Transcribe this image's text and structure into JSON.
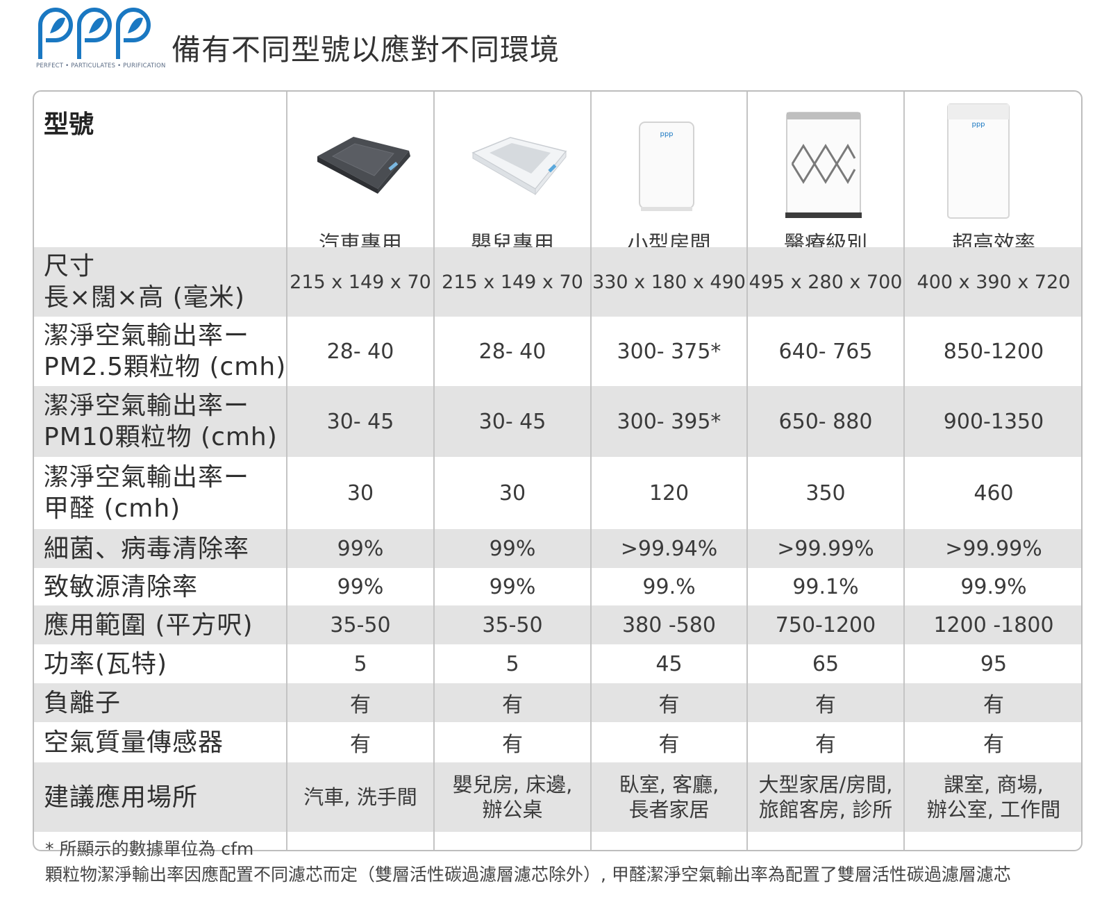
{
  "header": {
    "logo_text": "ppp",
    "logo_tagline": "PERFECT • PARTICULATES • PURIFICATION",
    "title": "備有不同型號以應對不同環境"
  },
  "table": {
    "model_label": "型號",
    "products": [
      {
        "name": "汽車專用",
        "icon": "car-purifier-dark-icon"
      },
      {
        "name": "嬰兒專用",
        "icon": "baby-purifier-white-icon"
      },
      {
        "name": "小型房間",
        "icon": "small-room-tower-icon"
      },
      {
        "name": "醫療級別",
        "icon": "medical-tower-icon"
      },
      {
        "name": "超高效率",
        "icon": "high-efficiency-tower-icon"
      }
    ],
    "rows": [
      {
        "label": [
          "尺寸",
          "長×闊×高 (毫米)"
        ],
        "values": [
          "215 x 149 x 70",
          "215 x 149 x 70",
          "330 x 180 x 490",
          "495 x 280 x 700",
          "400 x 390 x 720"
        ]
      },
      {
        "label": [
          "潔淨空氣輸出率ー",
          "PM2.5顆粒物 (cmh)"
        ],
        "values": [
          "28- 40",
          "28- 40",
          "300- 375*",
          "640- 765",
          "850-1200"
        ]
      },
      {
        "label": [
          "潔淨空氣輸出率ー",
          "PM10顆粒物 (cmh)"
        ],
        "values": [
          "30- 45",
          "30- 45",
          "300- 395*",
          "650- 880",
          "900-1350"
        ]
      },
      {
        "label": [
          "潔淨空氣輸出率ー",
          "甲醛 (cmh)"
        ],
        "values": [
          "30",
          "30",
          "120",
          "350",
          "460"
        ]
      },
      {
        "label": [
          "細菌、病毒清除率"
        ],
        "values": [
          "99%",
          "99%",
          ">99.94%",
          ">99.99%",
          ">99.99%"
        ]
      },
      {
        "label": [
          "致敏源清除率"
        ],
        "values": [
          "99%",
          "99%",
          "99.%",
          "99.1%",
          "99.9%"
        ]
      },
      {
        "label": [
          "應用範圍 (平方呎)"
        ],
        "values": [
          "35-50",
          "35-50",
          "380 -580",
          "750-1200",
          "1200 -1800"
        ]
      },
      {
        "label": [
          "功率(瓦特)"
        ],
        "values": [
          "5",
          "5",
          "45",
          "65",
          "95"
        ]
      },
      {
        "label": [
          "負離子"
        ],
        "values": [
          "有",
          "有",
          "有",
          "有",
          "有"
        ]
      },
      {
        "label": [
          "空氣質量傳感器"
        ],
        "values": [
          "有",
          "有",
          "有",
          "有",
          "有"
        ]
      },
      {
        "label": [
          "建議應用場所"
        ],
        "values": [
          [
            "汽車, 洗手間"
          ],
          [
            "嬰兒房, 床邊,",
            "辦公桌"
          ],
          [
            "臥室, 客廳,",
            "長者家居"
          ],
          [
            "大型家居/房間,",
            "旅館客房, 診所"
          ],
          [
            "課室, 商場,",
            "辦公室, 工作間"
          ]
        ]
      }
    ]
  },
  "footnotes": [
    "* 所顯示的數據單位為 cfm",
    "顆粒物潔淨輸出率因應配置不同濾芯而定（雙層活性碳過濾層濾芯除外）, 甲醛潔淨空氣輸出率為配置了雙層活性碳過濾層濾芯"
  ],
  "colors": {
    "row_shade": "#e3e3e3",
    "logo_blue": "#1a78c2",
    "border": "#bdbdbd"
  }
}
